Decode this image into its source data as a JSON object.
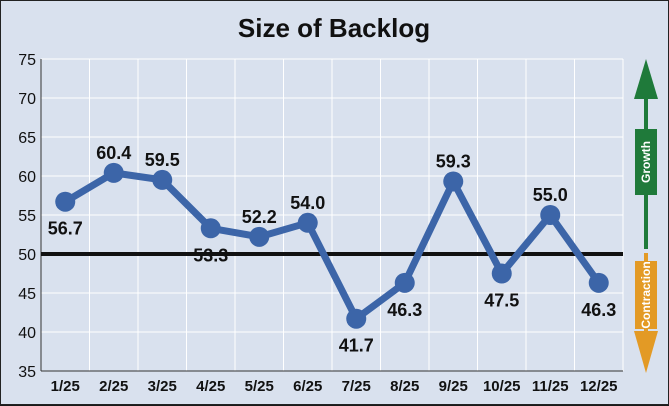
{
  "chart_data": {
    "type": "line",
    "title": "Size of Backlog",
    "xlabel": "",
    "ylabel": "",
    "categories": [
      "1/25",
      "2/25",
      "3/25",
      "4/25",
      "5/25",
      "6/25",
      "7/25",
      "8/25",
      "9/25",
      "10/25",
      "11/25",
      "12/25"
    ],
    "series": [
      {
        "values": [
          56.7,
          60.4,
          59.5,
          53.3,
          52.2,
          54.0,
          41.7,
          46.3,
          59.3,
          47.5,
          55.0,
          46.3
        ]
      }
    ],
    "data_labels": [
      "56.7",
      "60.4",
      "59.5",
      "53.3",
      "52.2",
      "54.0",
      "41.7",
      "46.3",
      "59.3",
      "47.5",
      "55.0",
      "46.3"
    ],
    "yticks": [
      "35",
      "40",
      "45",
      "50",
      "55",
      "60",
      "65",
      "70",
      "75"
    ],
    "ylim": [
      35,
      75
    ],
    "reference_line": 50,
    "grid": true,
    "legend": "none",
    "side_indicator": {
      "growth_label": "Growth",
      "contraction_label": "Contraction",
      "growth_color": "#1f7a3a",
      "contraction_color": "#e39a25"
    },
    "colors": {
      "line": "#3c65a8",
      "background": "#d9e1ee",
      "reference": "#111111"
    }
  }
}
